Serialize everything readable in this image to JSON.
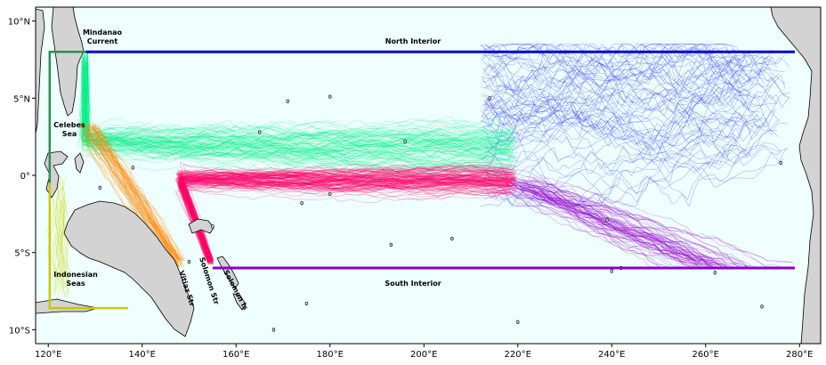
{
  "map": {
    "lon_range": [
      117.3,
      284.5
    ],
    "lat_range": [
      -10.9,
      10.9
    ],
    "ocean_color": "#eefffd",
    "land_color": "#d3d3d3",
    "x_ticks": [
      "120°E",
      "140°E",
      "160°E",
      "180°E",
      "200°E",
      "220°E",
      "240°E",
      "260°E",
      "280°E"
    ],
    "y_ticks": [
      "10°N",
      "5°N",
      "0°",
      "5°S",
      "10°S"
    ],
    "labels": {
      "mindanao": "Mindanao\nCurrent",
      "celebes": "Celebes\nSea",
      "indonesian": "Indonesian\nSeas",
      "vitiaz": "Vitiaz Str",
      "solomon_str": "Solomon Str",
      "solomon_is": "Solomon Is",
      "north_interior": "North Interior",
      "south_interior": "South Interior"
    },
    "boundaries": {
      "north_interior": {
        "color": "#0000cc",
        "lat": 8.0,
        "lon": [
          128,
          279
        ]
      },
      "south_interior": {
        "color": "#8800cc",
        "lat": -6.0,
        "lon": [
          155,
          279
        ]
      },
      "celebes_box": {
        "color": "#2e8b57"
      },
      "indonesian_box": {
        "color": "#c8c800"
      }
    },
    "pathway_colors": {
      "mindanao": "#00ee88",
      "vitiaz": "#ff8800",
      "solomon": "#ff0066",
      "north_interior": "#2222ff",
      "south_interior": "#9900cc",
      "indonesian": "#c8d800"
    }
  }
}
